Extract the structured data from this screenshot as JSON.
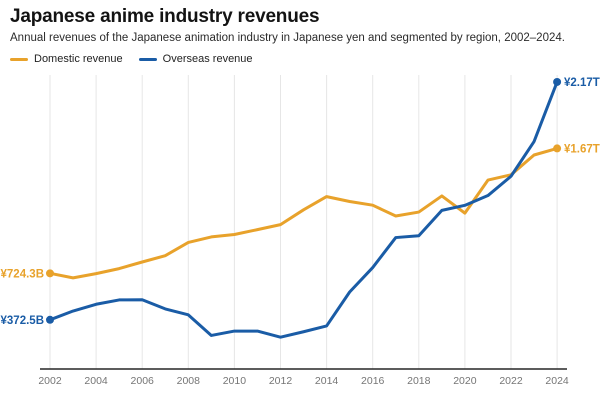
{
  "header": {
    "title": "Japanese anime industry revenues",
    "subtitle": "Annual revenues of the Japanese animation industry in Japanese yen and segmented by region, 2002–2024."
  },
  "legend": {
    "items": [
      {
        "label": "Domestic revenue",
        "color": "#E8A22B"
      },
      {
        "label": "Overseas revenue",
        "color": "#1A5CA6"
      }
    ]
  },
  "chart_data": {
    "type": "line",
    "title": "Japanese anime industry revenues",
    "subtitle": "Annual revenues of the Japanese animation industry in Japanese yen and segmented by region, 2002–2024.",
    "unit": "billions of Japanese yen",
    "x": [
      2002,
      2003,
      2004,
      2005,
      2006,
      2007,
      2008,
      2009,
      2010,
      2011,
      2012,
      2013,
      2014,
      2015,
      2016,
      2017,
      2018,
      2019,
      2020,
      2021,
      2022,
      2023,
      2024
    ],
    "x_ticks": [
      2002,
      2004,
      2006,
      2008,
      2010,
      2012,
      2014,
      2016,
      2018,
      2020,
      2022,
      2024
    ],
    "ylim": [
      0,
      2300
    ],
    "grid": "vertical-only",
    "legend_position": "top-left",
    "series": [
      {
        "name": "Domestic revenue",
        "color": "#E8A22B",
        "start_label": "¥724.3B",
        "end_label": "¥1.67T",
        "values": [
          724.3,
          690,
          722,
          760,
          810,
          858,
          958,
          1000,
          1018,
          1055,
          1093,
          1205,
          1305,
          1268,
          1240,
          1158,
          1188,
          1310,
          1180,
          1430,
          1470,
          1620,
          1670
        ]
      },
      {
        "name": "Overseas revenue",
        "color": "#1A5CA6",
        "start_label": "¥372.5B",
        "end_label": "¥2.17T",
        "values": [
          372.5,
          439,
          490,
          523,
          524,
          455,
          410,
          254,
          287,
          287,
          241,
          282,
          326,
          583,
          768,
          995,
          1009,
          1201,
          1239,
          1313,
          1459,
          1722,
          2173
        ]
      }
    ]
  }
}
